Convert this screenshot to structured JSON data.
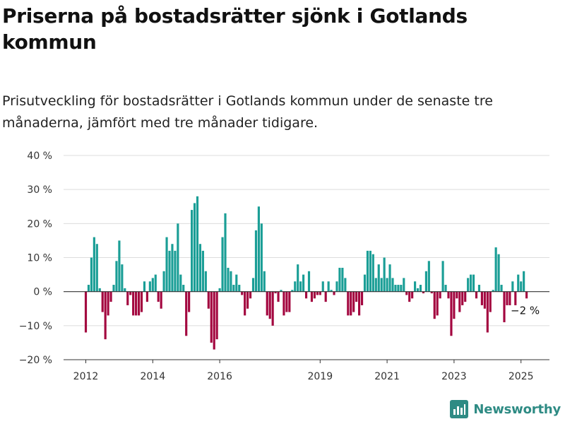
{
  "title": "Priserna på bostadsrätter sjönk i Gotlands kommun",
  "subtitle": "Prisutveckling för bostadsrätter i Gotlands kommun under de senaste tre månaderna, jämfört med tre månader tidigare.",
  "brand": "Newsworthy",
  "colors": {
    "positive": "#1a9e96",
    "negative": "#a3063f",
    "grid": "#dcdcdc",
    "axis": "#333333",
    "brand": "#2e8b84"
  },
  "chart_data": {
    "type": "bar",
    "x_unit": "month",
    "start": "2012-01",
    "end": "2025-06",
    "ylim": [
      -20,
      40
    ],
    "yticks": [
      -20,
      -10,
      0,
      10,
      20,
      30,
      40
    ],
    "ytick_labels": [
      "−20 %",
      "−10 %",
      "0 %",
      "10 %",
      "20 %",
      "30 %",
      "40 %"
    ],
    "xtick_labels": [
      "2012",
      "2014",
      "2016",
      "2019",
      "2021",
      "2023",
      "2025"
    ],
    "xtick_dates": [
      "2012-01",
      "2014-01",
      "2016-01",
      "2019-01",
      "2021-01",
      "2023-01",
      "2025-01"
    ],
    "grid": true,
    "annotation": "−2 %",
    "values": [
      -12,
      2,
      10,
      16,
      14,
      1,
      -6,
      -14,
      -7,
      -3,
      2,
      9,
      15,
      8,
      1,
      -4,
      -1,
      -7,
      -7,
      -7,
      -6,
      3,
      -3,
      3,
      4,
      5,
      -3,
      -5,
      6,
      16,
      12,
      14,
      12,
      20,
      5,
      2,
      -13,
      -6,
      24,
      26,
      28,
      14,
      12,
      6,
      -5,
      -15,
      -17,
      -14,
      1,
      16,
      23,
      7,
      6,
      2,
      5,
      2,
      -1,
      -7,
      -5,
      -2,
      4,
      18,
      25,
      20,
      6,
      -7,
      -8,
      -10,
      -0.5,
      -3,
      0.5,
      -7,
      -6,
      -6,
      0.5,
      3,
      8,
      3,
      5,
      -2,
      6,
      -3,
      -2,
      -1,
      -1,
      3,
      -3,
      3,
      0.5,
      -1,
      3,
      7,
      7,
      4,
      -7,
      -7,
      -6,
      -3,
      -7,
      -4,
      5,
      12,
      12,
      11,
      4,
      8,
      4,
      10,
      4,
      8,
      4,
      2,
      2,
      2,
      4,
      -1,
      -3,
      -2,
      3,
      1,
      2,
      -0.5,
      6,
      9,
      -0.5,
      -8,
      -7,
      -2,
      9,
      2,
      -2,
      -13,
      -8,
      -2,
      -6,
      -4,
      -3,
      4,
      5,
      5,
      -2,
      2,
      -4,
      -5,
      -12,
      -6,
      0.5,
      13,
      11,
      2,
      -9,
      -4,
      -4,
      3,
      -4,
      5,
      3,
      6,
      -2
    ]
  }
}
